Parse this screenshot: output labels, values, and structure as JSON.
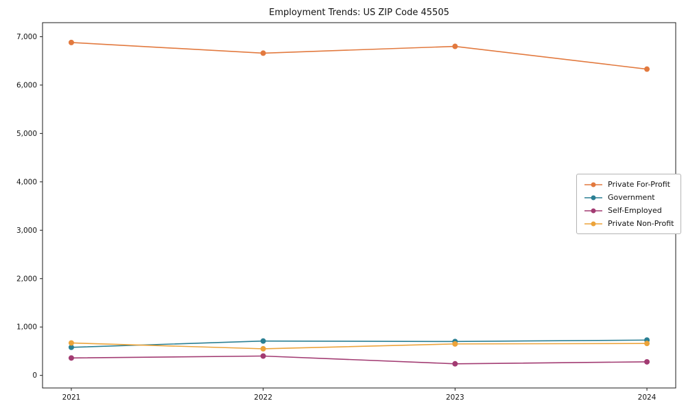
{
  "chart_data": {
    "type": "line",
    "title": "Employment Trends: US ZIP Code 45505",
    "x": [
      2021,
      2022,
      2023,
      2024
    ],
    "xlabel": "",
    "ylabel": "",
    "ylim": [
      0,
      7000
    ],
    "yticks": [
      0,
      1000,
      2000,
      3000,
      4000,
      5000,
      6000,
      7000
    ],
    "grid": false,
    "legend_position": "middle-right",
    "series": [
      {
        "name": "Private For-Profit",
        "color": "#e2793e",
        "values": [
          6880,
          6660,
          6800,
          6330
        ]
      },
      {
        "name": "Government",
        "color": "#2a7f93",
        "values": [
          580,
          710,
          700,
          730
        ]
      },
      {
        "name": "Self-Employed",
        "color": "#a23b72",
        "values": [
          360,
          400,
          240,
          280
        ]
      },
      {
        "name": "Private Non-Profit",
        "color": "#eca33a",
        "values": [
          670,
          550,
          650,
          660
        ]
      }
    ]
  }
}
